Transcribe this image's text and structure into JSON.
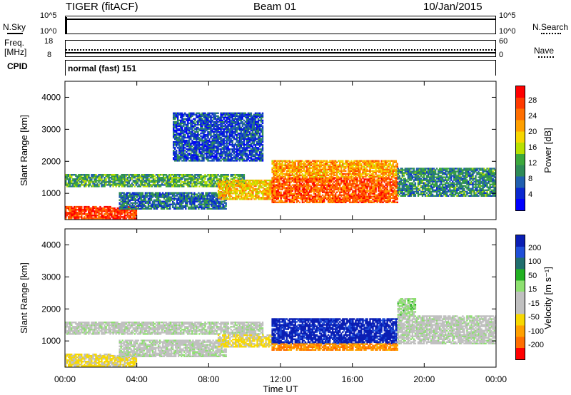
{
  "header": {
    "radar": "TIGER (fitACF)",
    "beam": "Beam 01",
    "date": "10/Jan/2015"
  },
  "strip_nsky": {
    "label": "N.Sky",
    "left_ticks": [
      "10^5",
      "10^0"
    ],
    "right_ticks": [
      "10^5",
      "10^0"
    ],
    "right_label": "N.Search"
  },
  "strip_freq": {
    "label_top": "Freq.",
    "label_bottom": "[MHz]",
    "left_ticks": [
      "18",
      "8"
    ],
    "right_ticks": [
      "60",
      "0"
    ],
    "right_label": "Nave"
  },
  "cpid": {
    "label": "CPID",
    "value": "normal (fast) 151"
  },
  "axes": {
    "ylabel": "Slant Range [km]",
    "yticks": [
      "4000",
      "3000",
      "2000",
      "1000"
    ],
    "xticks": [
      "00:00",
      "04:00",
      "08:00",
      "12:00",
      "16:00",
      "20:00",
      "00:00"
    ],
    "xlabel": "Time UT"
  },
  "colorbars": {
    "power": {
      "label": "Power [dB]",
      "ticks": [
        "28",
        "24",
        "20",
        "16",
        "12",
        "8",
        "4"
      ],
      "colors": [
        "#ff0000",
        "#ff3a00",
        "#ff6e00",
        "#ffa000",
        "#f6d600",
        "#b8e000",
        "#3ca83c",
        "#2e8b57",
        "#205fb0",
        "#0a28d0",
        "#0000ff"
      ]
    },
    "velocity": {
      "label": "Velocity [m s⁻¹]",
      "ticks": [
        "200",
        "100",
        "50",
        "15",
        "-15",
        "-50",
        "-100",
        "-200"
      ],
      "colors": [
        "#0a1eb4",
        "#1f4fd8",
        "#1f6e6e",
        "#22b022",
        "#8ee070",
        "#c0c0c0",
        "#c0c0c0",
        "#f7d800",
        "#ffa000",
        "#ff6e00",
        "#ff0000"
      ]
    }
  },
  "chart_data": [
    {
      "type": "heatmap",
      "title": "",
      "xlabel": "Time UT",
      "ylabel": "Slant Range [km]",
      "x_range_hours": [
        0,
        24
      ],
      "y_range_km": [
        180,
        4500
      ],
      "colorbar_label": "Power [dB]",
      "colorbar_range": [
        0,
        32
      ],
      "echo_regions": [
        {
          "t_start": 0,
          "t_end": 4,
          "range_low": 200,
          "range_high": 600,
          "power": 28
        },
        {
          "t_start": 0,
          "t_end": 10,
          "range_low": 1200,
          "range_high": 1600,
          "power": 12
        },
        {
          "t_start": 3,
          "t_end": 9,
          "range_low": 500,
          "range_high": 1000,
          "power": 8
        },
        {
          "t_start": 8.5,
          "t_end": 11.5,
          "range_low": 800,
          "range_high": 1400,
          "power": 20
        },
        {
          "t_start": 11.5,
          "t_end": 18.5,
          "range_low": 700,
          "range_high": 1500,
          "power": 26
        },
        {
          "t_start": 11.5,
          "t_end": 18.5,
          "range_low": 1500,
          "range_high": 2000,
          "power": 22
        },
        {
          "t_start": 18.5,
          "t_end": 24,
          "range_low": 900,
          "range_high": 1800,
          "power": 10
        },
        {
          "t_start": 6,
          "t_end": 11,
          "range_low": 2000,
          "range_high": 3500,
          "power": 6
        }
      ]
    },
    {
      "type": "heatmap",
      "title": "",
      "xlabel": "Time UT",
      "ylabel": "Slant Range [km]",
      "x_range_hours": [
        0,
        24
      ],
      "y_range_km": [
        180,
        4500
      ],
      "colorbar_label": "Velocity [m s⁻¹]",
      "colorbar_range": [
        -200,
        200
      ],
      "echo_regions": [
        {
          "t_start": 0,
          "t_end": 4,
          "range_low": 200,
          "range_high": 600,
          "velocity": -60
        },
        {
          "t_start": 0,
          "t_end": 11,
          "range_low": 1200,
          "range_high": 1600,
          "velocity": 0
        },
        {
          "t_start": 3,
          "t_end": 9,
          "range_low": 500,
          "range_high": 1000,
          "velocity": 0
        },
        {
          "t_start": 8.5,
          "t_end": 11.5,
          "range_low": 800,
          "range_high": 1200,
          "velocity": -60
        },
        {
          "t_start": 11.5,
          "t_end": 18.5,
          "range_low": 900,
          "range_high": 1700,
          "velocity": 180
        },
        {
          "t_start": 11.5,
          "t_end": 18.5,
          "range_low": 700,
          "range_high": 900,
          "velocity": -120
        },
        {
          "t_start": 18.5,
          "t_end": 24,
          "range_low": 900,
          "range_high": 1800,
          "velocity": 0
        },
        {
          "t_start": 18.5,
          "t_end": 19.5,
          "range_low": 1800,
          "range_high": 2300,
          "velocity": 30
        }
      ]
    }
  ]
}
